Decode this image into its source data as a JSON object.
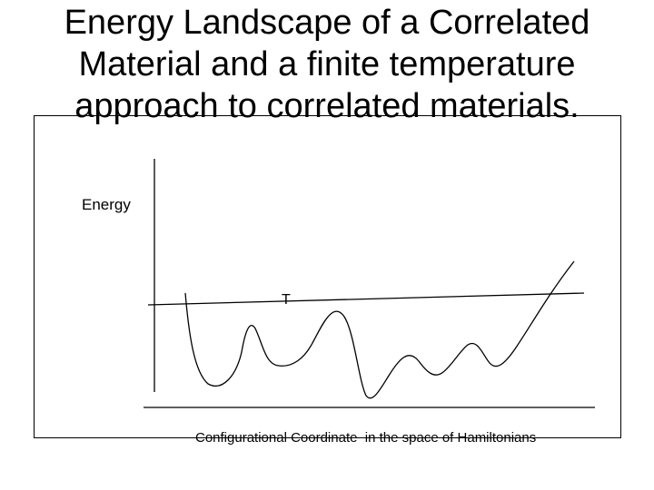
{
  "title": {
    "line1": "Energy Landscape of a Correlated",
    "line2": "Material and a finite temperature",
    "line3": "approach to correlated materials."
  },
  "diagram": {
    "y_axis_label": "Energy",
    "temperature_label": "T",
    "x_axis_label": "Configurational Coordinate  in the space of Hamiltonians"
  },
  "colors": {
    "stroke": "#000000",
    "background": "#ffffff"
  }
}
